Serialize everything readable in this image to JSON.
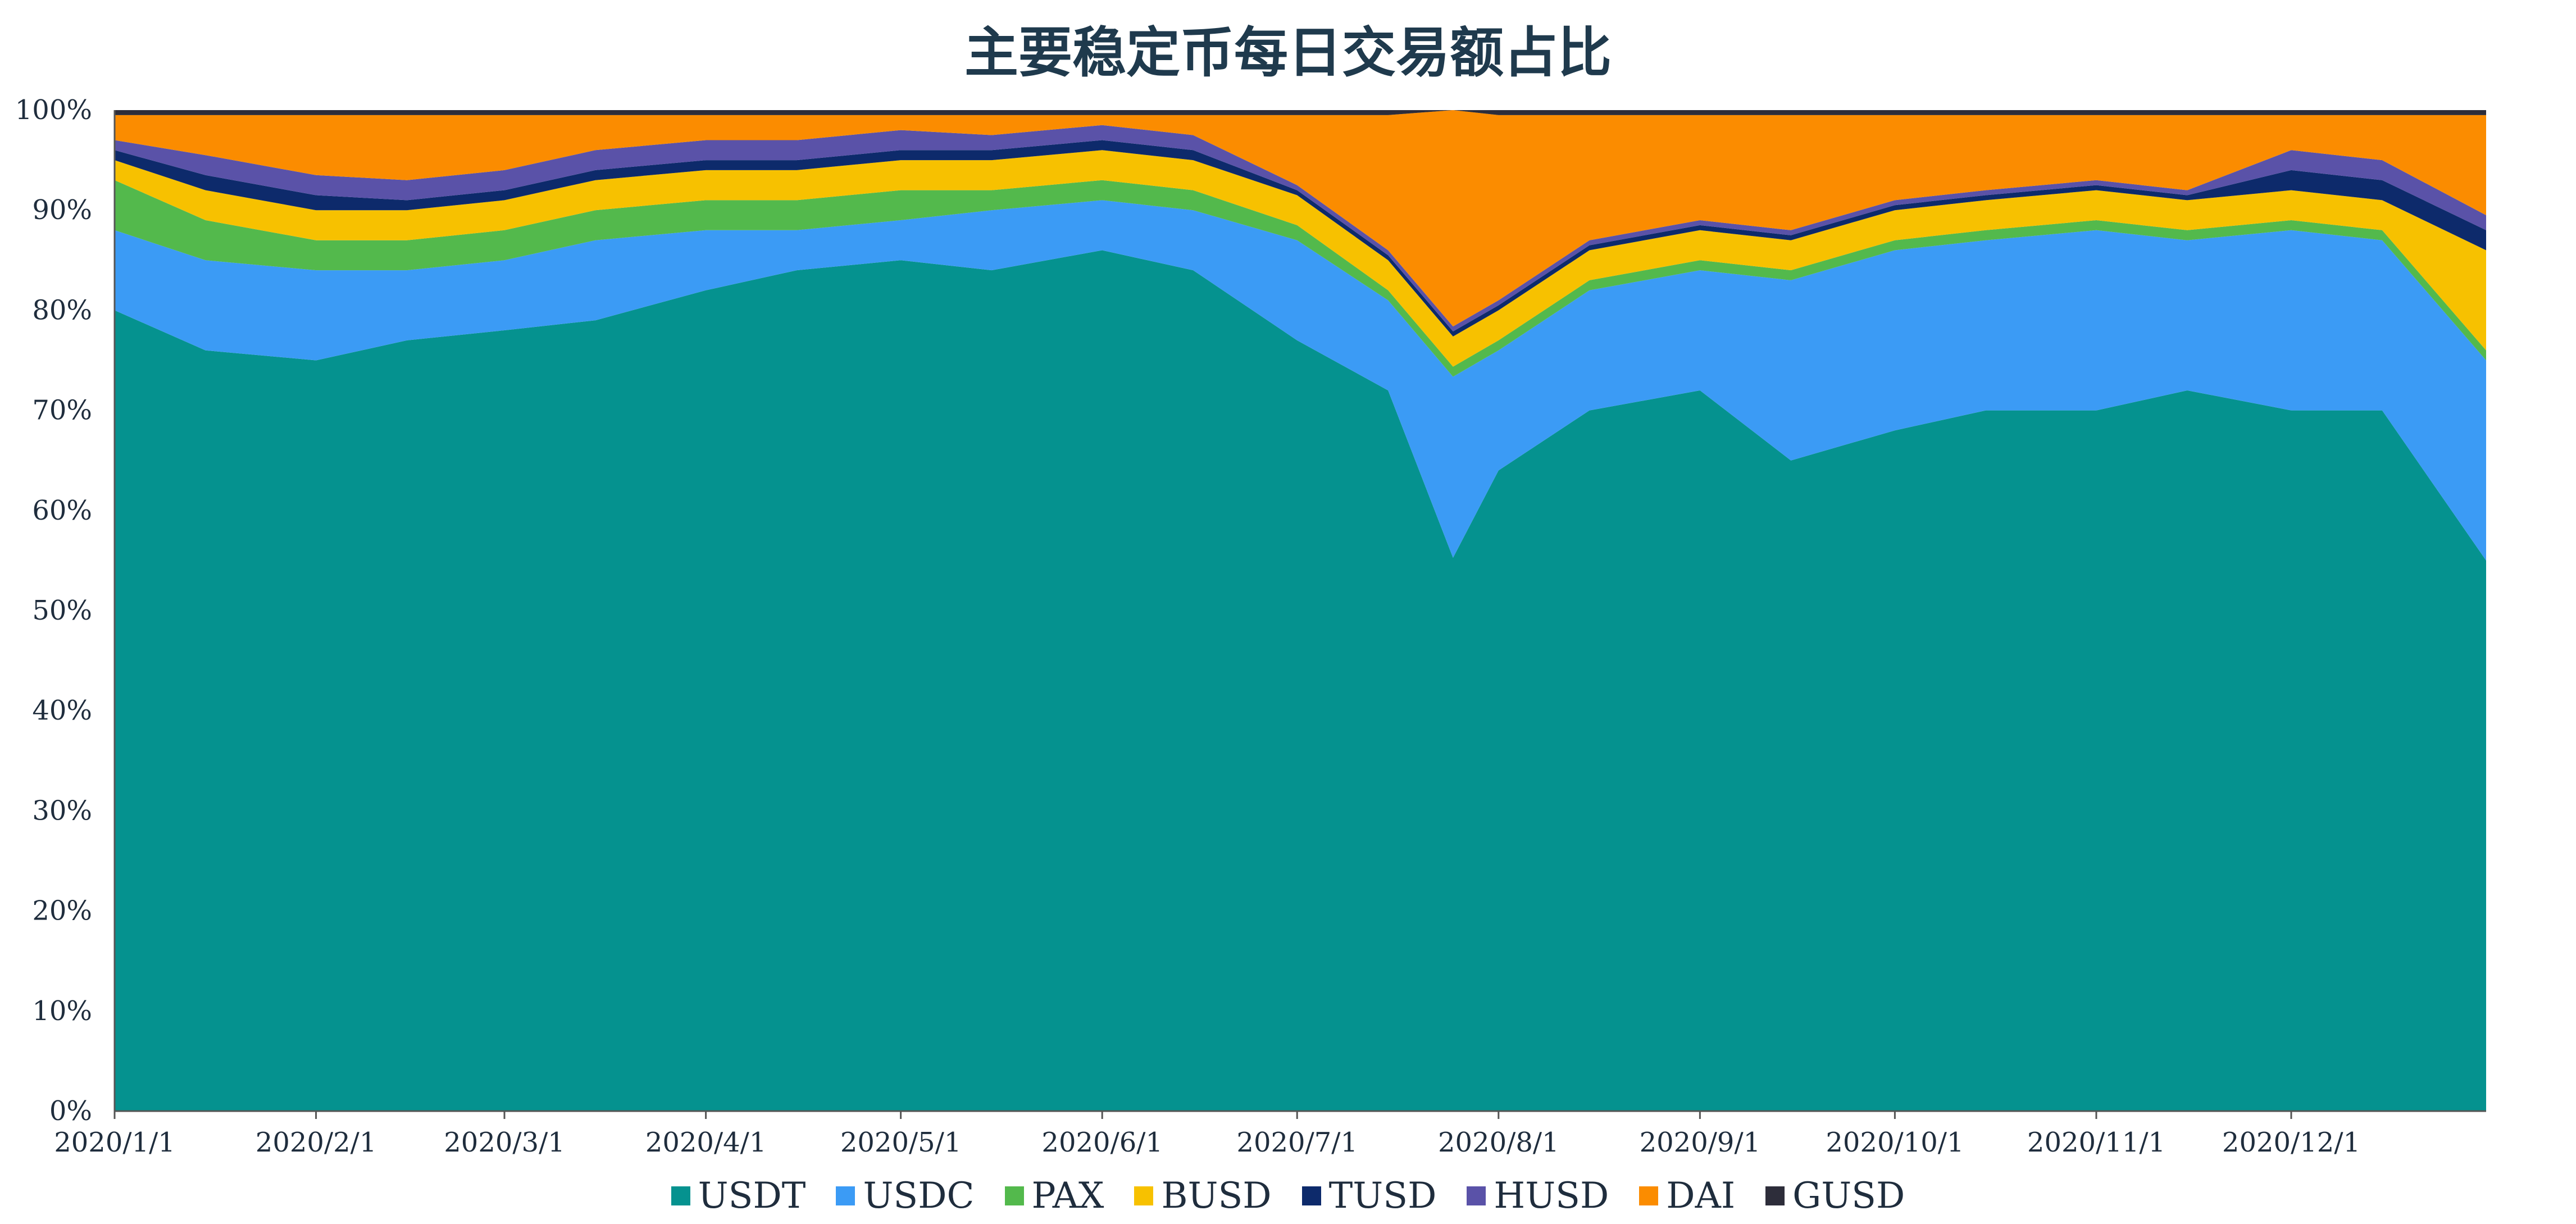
{
  "chart_data": {
    "type": "area",
    "stacked": true,
    "normalized": true,
    "title": "主要稳定币每日交易额占比",
    "xlabel": "",
    "ylabel": "",
    "ylim": [
      0,
      100
    ],
    "y_ticks": [
      "0%",
      "10%",
      "20%",
      "30%",
      "40%",
      "50%",
      "60%",
      "70%",
      "80%",
      "90%",
      "100%"
    ],
    "x_ticks": [
      "2020/1/1",
      "2020/2/1",
      "2020/3/1",
      "2020/4/1",
      "2020/5/1",
      "2020/6/1",
      "2020/7/1",
      "2020/8/1",
      "2020/9/1",
      "2020/10/1",
      "2020/11/1",
      "2020/12/1"
    ],
    "x_range": [
      "2020/1/1",
      "2020/12/31"
    ],
    "legend_position": "bottom",
    "grid": false,
    "x": [
      "2020/1/1",
      "2020/1/15",
      "2020/2/1",
      "2020/2/15",
      "2020/3/1",
      "2020/3/15",
      "2020/4/1",
      "2020/4/15",
      "2020/5/1",
      "2020/5/15",
      "2020/6/1",
      "2020/6/15",
      "2020/7/1",
      "2020/7/15",
      "2020/7/25",
      "2020/8/1",
      "2020/8/15",
      "2020/9/1",
      "2020/9/15",
      "2020/10/1",
      "2020/10/15",
      "2020/11/1",
      "2020/11/15",
      "2020/12/1",
      "2020/12/15",
      "2020/12/31"
    ],
    "series": [
      {
        "name": "USDT",
        "color": "#05928f",
        "values": [
          80,
          76,
          75,
          77,
          78,
          79,
          82,
          84,
          85,
          84,
          86,
          84,
          77,
          72,
          55,
          64,
          70,
          72,
          65,
          68,
          70,
          70,
          72,
          70,
          70,
          55
        ]
      },
      {
        "name": "USDC",
        "color": "#3b9bf5",
        "values": [
          8,
          9,
          9,
          7,
          7,
          8,
          6,
          4,
          4,
          6,
          5,
          6,
          10,
          9,
          18,
          12,
          12,
          12,
          18,
          18,
          17,
          18,
          15,
          18,
          17,
          20
        ]
      },
      {
        "name": "PAX",
        "color": "#53b94c",
        "values": [
          5,
          4,
          3,
          3,
          3,
          3,
          3,
          3,
          3,
          2,
          2,
          2,
          1.5,
          1,
          1,
          1,
          1,
          1,
          1,
          1,
          1,
          1,
          1,
          1,
          1,
          1
        ]
      },
      {
        "name": "BUSD",
        "color": "#f7c100",
        "values": [
          2,
          3,
          3,
          3,
          3,
          3,
          3,
          3,
          3,
          3,
          3,
          3,
          3,
          3,
          3,
          3,
          3,
          3,
          3,
          3,
          3,
          3,
          3,
          3,
          3,
          10
        ]
      },
      {
        "name": "TUSD",
        "color": "#0d2a6b",
        "values": [
          1,
          1.5,
          1.5,
          1,
          1,
          1,
          1,
          1,
          1,
          1,
          1,
          1,
          0.5,
          0.5,
          0.5,
          0.5,
          0.5,
          0.5,
          0.5,
          0.5,
          0.5,
          0.5,
          0.5,
          2,
          2,
          2
        ]
      },
      {
        "name": "HUSD",
        "color": "#5a52a8",
        "values": [
          1,
          2,
          2,
          2,
          2,
          2,
          2,
          2,
          2,
          1.5,
          1.5,
          1.5,
          0.5,
          0.5,
          0.5,
          0.5,
          0.5,
          0.5,
          0.5,
          0.5,
          0.5,
          0.5,
          0.5,
          2,
          2,
          1.5
        ]
      },
      {
        "name": "DAI",
        "color": "#fb8c00",
        "values": [
          2.5,
          4,
          6,
          6.5,
          5.5,
          3.5,
          2.5,
          2.5,
          1.5,
          2,
          1,
          2,
          7,
          13.5,
          21.5,
          18.5,
          12.5,
          10.5,
          11.5,
          8.5,
          7.5,
          6.5,
          7.5,
          3.5,
          4.5,
          10
        ]
      },
      {
        "name": "GUSD",
        "color": "#2d2d3a",
        "values": [
          0.5,
          0.5,
          0.5,
          0.5,
          0.5,
          0.5,
          0.5,
          0.5,
          0.5,
          0.5,
          0.5,
          0.5,
          0.5,
          0.5,
          0,
          0.5,
          0.5,
          0.5,
          0.5,
          0.5,
          0.5,
          0.5,
          0.5,
          0.5,
          0.5,
          0.5
        ]
      }
    ]
  }
}
